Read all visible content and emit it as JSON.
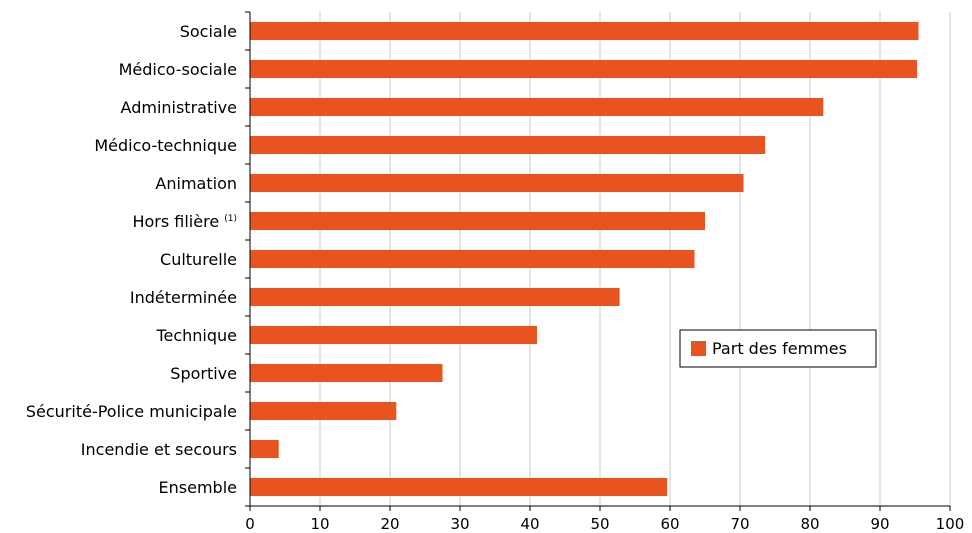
{
  "chart_data": {
    "type": "bar",
    "orientation": "horizontal",
    "categories": [
      "Sociale",
      "Médico-sociale",
      "Administrative",
      "Médico-technique",
      "Animation",
      "Hors filière",
      "Culturelle",
      "Indéterminée",
      "Technique",
      "Sportive",
      "Sécurité-Police municipale",
      "Incendie et secours",
      "Ensemble"
    ],
    "category_note": {
      "index": 5,
      "text": "(1)"
    },
    "series": [
      {
        "name": "Part des femmes",
        "color": "#E9531F",
        "values": [
          95.5,
          95.3,
          81.9,
          73.6,
          70.5,
          65.0,
          63.5,
          52.8,
          41.0,
          27.5,
          20.9,
          4.1,
          59.6
        ]
      }
    ],
    "xticks": [
      "0",
      "10",
      "20",
      "30",
      "40",
      "50",
      "60",
      "70",
      "80",
      "90",
      "100"
    ],
    "xlim": [
      0,
      100
    ],
    "grid": "vertical",
    "legend": "right",
    "title": "",
    "xlabel": "",
    "ylabel": ""
  }
}
